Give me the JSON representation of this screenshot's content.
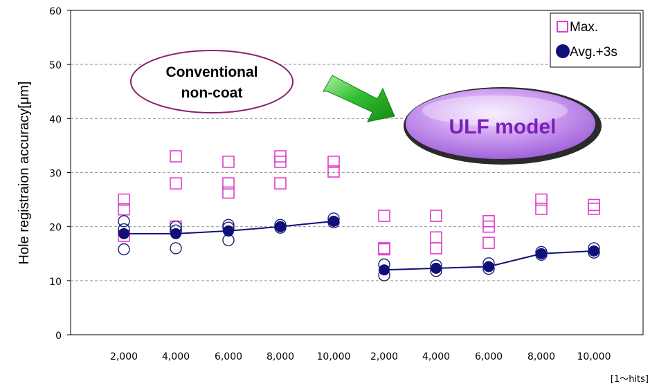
{
  "chart_data": {
    "type": "scatter",
    "ylabel": "Hole registraion accuracy[μm]",
    "unit_label": "[1〜hits]",
    "ylim": [
      0,
      60
    ],
    "yticks": [
      0,
      10,
      20,
      30,
      40,
      50,
      60
    ],
    "grid": true,
    "legend_position": "top-right",
    "categories": [
      "2,000",
      "4,000",
      "6,000",
      "8,000",
      "10,000",
      "2,000",
      "4,000",
      "6,000",
      "8,000",
      "10,000"
    ],
    "groups": [
      {
        "label": "Conventional\nnon-coat",
        "category_range": [
          0,
          4
        ]
      },
      {
        "label": "ULF model",
        "category_range": [
          5,
          9
        ]
      }
    ],
    "series": [
      {
        "name": "Max.",
        "marker": "open-square",
        "color": "#e03cc8",
        "points": [
          [
            0,
            25
          ],
          [
            0,
            23.2
          ],
          [
            0,
            18.3
          ],
          [
            1,
            33
          ],
          [
            1,
            28
          ],
          [
            1,
            20
          ],
          [
            2,
            32
          ],
          [
            2,
            28
          ],
          [
            2,
            26.3
          ],
          [
            3,
            33
          ],
          [
            3,
            32
          ],
          [
            3,
            28
          ],
          [
            4,
            32
          ],
          [
            4,
            30.2
          ],
          [
            5,
            22
          ],
          [
            5,
            16
          ],
          [
            5,
            15.8
          ],
          [
            6,
            22
          ],
          [
            6,
            18
          ],
          [
            6,
            16
          ],
          [
            7,
            21
          ],
          [
            7,
            20
          ],
          [
            7,
            17
          ],
          [
            8,
            25
          ],
          [
            8,
            23.3
          ],
          [
            9,
            24
          ],
          [
            9,
            23.3
          ]
        ]
      },
      {
        "name": "",
        "marker": "open-circle",
        "color": "#1a1a7a",
        "points": [
          [
            0,
            21
          ],
          [
            0,
            19.5
          ],
          [
            0,
            15.8
          ],
          [
            1,
            20
          ],
          [
            1,
            19.3
          ],
          [
            1,
            16
          ],
          [
            2,
            20.3
          ],
          [
            2,
            19.8
          ],
          [
            2,
            17.5
          ],
          [
            3,
            20.3
          ],
          [
            3,
            19.8
          ],
          [
            4,
            21.5
          ],
          [
            4,
            20.8
          ],
          [
            5,
            13
          ],
          [
            5,
            11
          ],
          [
            6,
            12.8
          ],
          [
            6,
            11.8
          ],
          [
            7,
            13.2
          ],
          [
            7,
            12.2
          ],
          [
            8,
            15.3
          ],
          [
            8,
            14.8
          ],
          [
            9,
            16
          ],
          [
            9,
            15.2
          ]
        ]
      },
      {
        "name": "Avg.+3s",
        "marker": "filled-circle",
        "color": "#0f0f78",
        "line_segments": [
          [
            0,
            4
          ],
          [
            5,
            9
          ]
        ],
        "values": [
          18.7,
          18.7,
          19.2,
          20,
          21,
          12,
          12.3,
          12.6,
          15,
          15.5
        ]
      }
    ]
  }
}
